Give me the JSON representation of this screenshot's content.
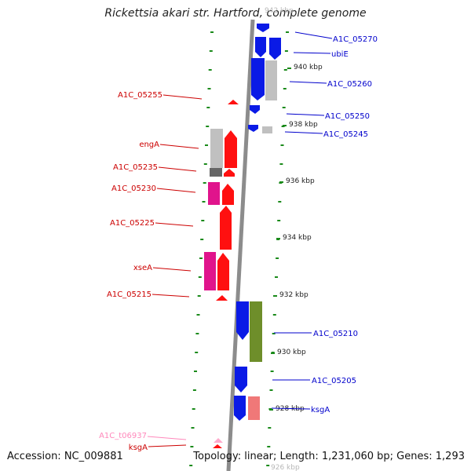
{
  "title": "Rickettsia akari str. Hartford, complete genome",
  "accession": "Accession: NC_009881",
  "summary": "Topology: linear; Length: 1,231,060 bp; Genes: 1,293",
  "colors": {
    "backbone": "#8c8c8c",
    "tick": "#1a8a1a",
    "forward_label": "#0000cc",
    "reverse_label": "#cc0000",
    "trna_label": "#ff88bb",
    "blue": "#0a1ae6",
    "gray": "#c0c0c0",
    "red": "#ff1010",
    "magenta": "#e0148c",
    "olive": "#6e8e2a",
    "salmon": "#f07878",
    "pink": "#ffaacc"
  },
  "scale_labels": [
    "940 kbp",
    "938 kbp",
    "936 kbp",
    "934 kbp",
    "932 kbp",
    "930 kbp",
    "928 kbp"
  ],
  "forward_genes": [
    "A1C_05270",
    "ubiE",
    "A1C_05260",
    "A1C_05250",
    "A1C_05245",
    "A1C_05210",
    "A1C_05205",
    "ksgA"
  ],
  "reverse_genes": [
    "A1C_05255",
    "engA",
    "A1C_05235",
    "A1C_05230",
    "A1C_05225",
    "xseA",
    "A1C_05215",
    "A1C_t06937",
    "ksgA"
  ]
}
